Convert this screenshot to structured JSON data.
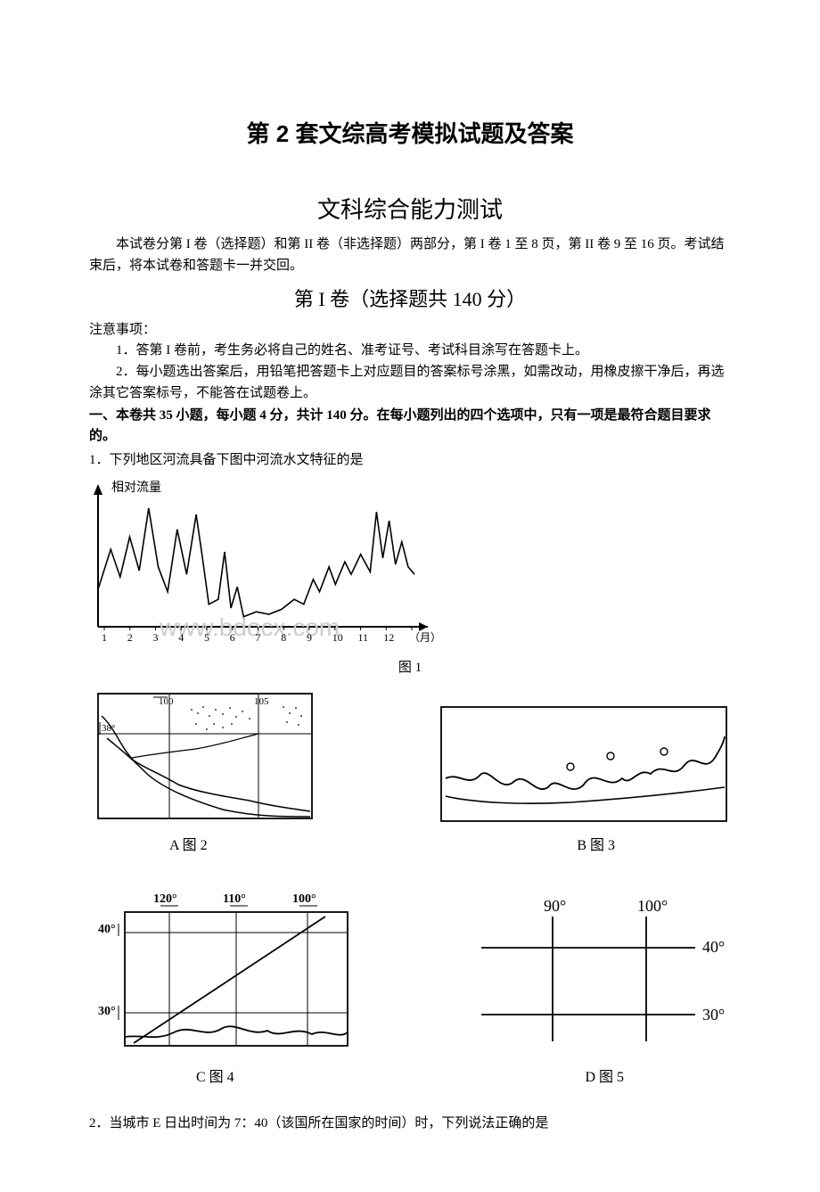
{
  "doc": {
    "title": "第 2 套文综高考模拟试题及答案",
    "subject": "文科综合能力测试",
    "intro1": "本试卷分第 I 卷（选择题）和第 II 卷（非选择题）两部分，第 I 卷 1 至 8 页，第 II 卷 9 至 16 页。考试结束后，将本试卷和答题卡一并交回。",
    "section1_title": "第 I 卷（选择题共 140 分）",
    "notice_label": "注意事项：",
    "notice1": "1．答第 I 卷前，考生务必将自己的姓名、准考证号、考试科目涂写在答题卡上。",
    "notice2": "2．每小题选出答案后，用铅笔把答题卡上对应题目的答案标号涂黑，如需改动，用橡皮擦干净后，再选涂其它答案标号，不能答在试题卷上。",
    "instruction": "一、本卷共 35 小题，每小题 4 分，共计 140 分。在每小题列出的四个选项中，只有一项是最符合题目要求的。",
    "q1": "1．下列地区河流具备下图中河流水文特征的是",
    "q2": "2．当城市 E 日出时间为 7：40（该国所在国家的时间）时，下列说法正确的是"
  },
  "chart": {
    "y_label": "相对流量",
    "x_ticks": [
      "1",
      "2",
      "3",
      "4",
      "5",
      "6",
      "7",
      "8",
      "9",
      "10",
      "11",
      "12",
      "（月）"
    ],
    "fig_label": "图 1",
    "watermark": "www.bdocx.com",
    "line_color": "#000000",
    "bg_color": "#ffffff",
    "data": [
      [
        0.0,
        30
      ],
      [
        0.04,
        62
      ],
      [
        0.07,
        40
      ],
      [
        0.1,
        72
      ],
      [
        0.13,
        45
      ],
      [
        0.16,
        95
      ],
      [
        0.19,
        48
      ],
      [
        0.22,
        28
      ],
      [
        0.25,
        78
      ],
      [
        0.28,
        42
      ],
      [
        0.31,
        90
      ],
      [
        0.33,
        55
      ],
      [
        0.35,
        18
      ],
      [
        0.38,
        22
      ],
      [
        0.4,
        60
      ],
      [
        0.42,
        15
      ],
      [
        0.44,
        32
      ],
      [
        0.46,
        8
      ],
      [
        0.5,
        12
      ],
      [
        0.54,
        10
      ],
      [
        0.58,
        14
      ],
      [
        0.62,
        22
      ],
      [
        0.65,
        18
      ],
      [
        0.68,
        38
      ],
      [
        0.7,
        28
      ],
      [
        0.73,
        48
      ],
      [
        0.75,
        34
      ],
      [
        0.78,
        52
      ],
      [
        0.8,
        42
      ],
      [
        0.83,
        58
      ],
      [
        0.86,
        44
      ],
      [
        0.88,
        92
      ],
      [
        0.9,
        55
      ],
      [
        0.92,
        85
      ],
      [
        0.94,
        50
      ],
      [
        0.96,
        68
      ],
      [
        0.98,
        48
      ],
      [
        1.0,
        42
      ]
    ]
  },
  "maps": {
    "A": {
      "label": "A  图 2",
      "lon_ticks": [
        "100",
        "105"
      ],
      "lat_tick": "38°"
    },
    "B": {
      "label": "B  图 3"
    },
    "C": {
      "label": "C   图 4",
      "lon_ticks": [
        "120°",
        "110°",
        "100°"
      ],
      "lat_ticks": [
        "40°",
        "30°"
      ]
    },
    "D": {
      "label": "D    图 5",
      "lon_ticks": [
        "90°",
        "100°"
      ],
      "lat_ticks": [
        "40°",
        "30°"
      ]
    }
  }
}
